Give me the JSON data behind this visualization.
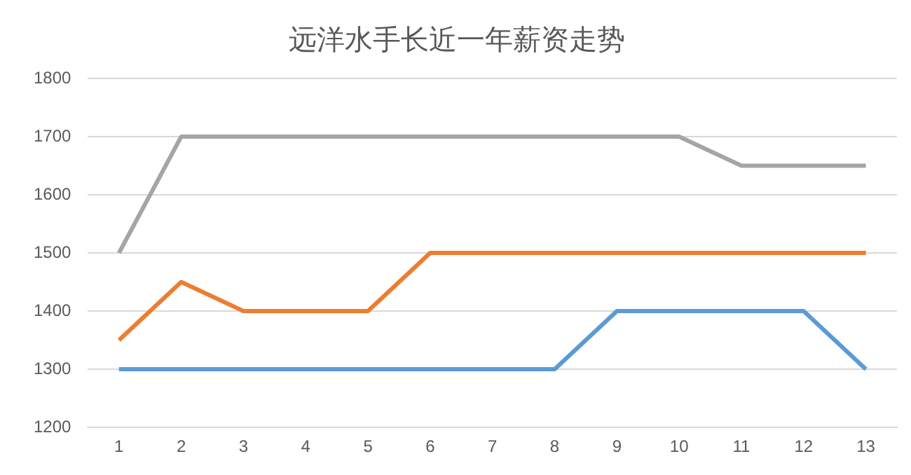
{
  "chart_data": {
    "type": "line",
    "title": "远洋水手长近一年薪资走势",
    "categories": [
      "1",
      "2",
      "3",
      "4",
      "5",
      "6",
      "7",
      "8",
      "9",
      "10",
      "11",
      "12",
      "13"
    ],
    "series": [
      {
        "color": "#a5a5a5",
        "values": [
          1500,
          1700,
          1700,
          1700,
          1700,
          1700,
          1700,
          1700,
          1700,
          1700,
          1650,
          1650,
          1650
        ]
      },
      {
        "color": "#ed7d31",
        "values": [
          1350,
          1450,
          1400,
          1400,
          1400,
          1500,
          1500,
          1500,
          1500,
          1500,
          1500,
          1500,
          1500
        ]
      },
      {
        "color": "#5b9bd5",
        "values": [
          1300,
          1300,
          1300,
          1300,
          1300,
          1300,
          1300,
          1300,
          1400,
          1400,
          1400,
          1400,
          1300
        ]
      }
    ],
    "ylim": [
      1200,
      1800
    ],
    "yticks": [
      1200,
      1300,
      1400,
      1500,
      1600,
      1700,
      1800
    ],
    "grid": "y",
    "legend": false,
    "marker": "none",
    "line_style": "solid"
  }
}
